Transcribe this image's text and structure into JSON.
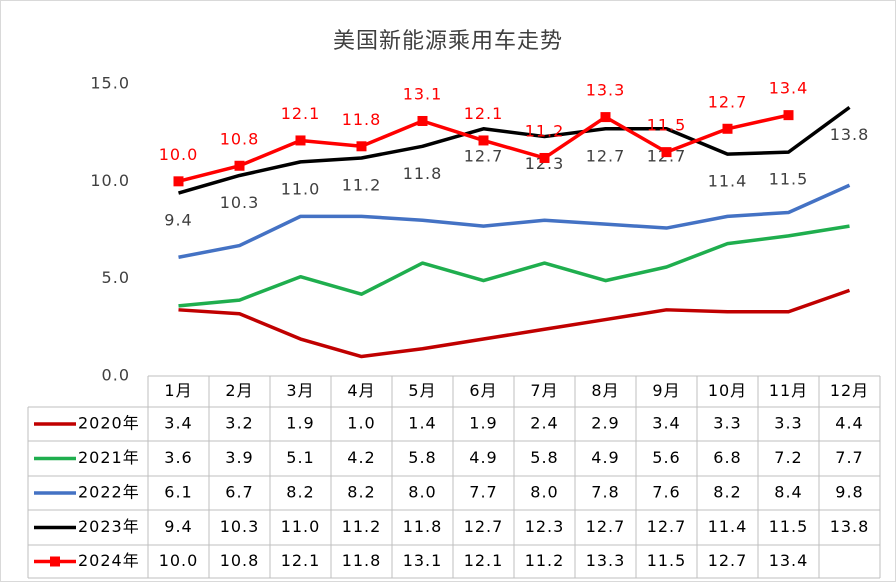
{
  "chart_data": {
    "type": "line",
    "title": "美国新能源乘用车走势",
    "categories": [
      "1月",
      "2月",
      "3月",
      "4月",
      "5月",
      "6月",
      "7月",
      "8月",
      "9月",
      "10月",
      "11月",
      "12月"
    ],
    "ylim": [
      0,
      15
    ],
    "yticks": [
      {
        "value": 0,
        "label": "0.0"
      },
      {
        "value": 5,
        "label": "5.0"
      },
      {
        "value": 10,
        "label": "10.0"
      },
      {
        "value": 15,
        "label": "15.0"
      }
    ],
    "series": [
      {
        "name": "2020年",
        "color": "#c00000",
        "values": [
          3.4,
          3.2,
          1.9,
          1.0,
          1.4,
          1.9,
          2.4,
          2.9,
          3.4,
          3.3,
          3.3,
          4.4
        ],
        "value_labels": [
          "3.4",
          "3.2",
          "1.9",
          "1.0",
          "1.4",
          "1.9",
          "2.4",
          "2.9",
          "3.4",
          "3.3",
          "3.3",
          "4.4"
        ]
      },
      {
        "name": "2021年",
        "color": "#1fae4e",
        "values": [
          3.6,
          3.9,
          5.1,
          4.2,
          5.8,
          4.9,
          5.8,
          4.9,
          5.6,
          6.8,
          7.2,
          7.7
        ],
        "value_labels": [
          "3.6",
          "3.9",
          "5.1",
          "4.2",
          "5.8",
          "4.9",
          "5.8",
          "4.9",
          "5.6",
          "6.8",
          "7.2",
          "7.7"
        ]
      },
      {
        "name": "2022年",
        "color": "#4472c4",
        "values": [
          6.1,
          6.7,
          8.2,
          8.2,
          8.0,
          7.7,
          8.0,
          7.8,
          7.6,
          8.2,
          8.4,
          9.8
        ],
        "value_labels": [
          "6.1",
          "6.7",
          "8.2",
          "8.2",
          "8.0",
          "7.7",
          "8.0",
          "7.8",
          "7.6",
          "8.2",
          "8.4",
          "9.8"
        ]
      },
      {
        "name": "2023年",
        "color": "#000000",
        "values": [
          9.4,
          10.3,
          11.0,
          11.2,
          11.8,
          12.7,
          12.3,
          12.7,
          12.7,
          11.4,
          11.5,
          13.8
        ],
        "value_labels": [
          "9.4",
          "10.3",
          "11.0",
          "11.2",
          "11.8",
          "12.7",
          "12.3",
          "12.7",
          "12.7",
          "11.4",
          "11.5",
          "13.8"
        ],
        "data_labels": "below"
      },
      {
        "name": "2024年",
        "color": "#ff0000",
        "values": [
          10.0,
          10.8,
          12.1,
          11.8,
          13.1,
          12.1,
          11.2,
          13.3,
          11.5,
          12.7,
          13.4,
          null
        ],
        "value_labels": [
          "10.0",
          "10.8",
          "12.1",
          "11.8",
          "13.1",
          "12.1",
          "11.2",
          "13.3",
          "11.5",
          "12.7",
          "13.4",
          null
        ],
        "data_labels": "above",
        "marker": "square"
      }
    ]
  }
}
